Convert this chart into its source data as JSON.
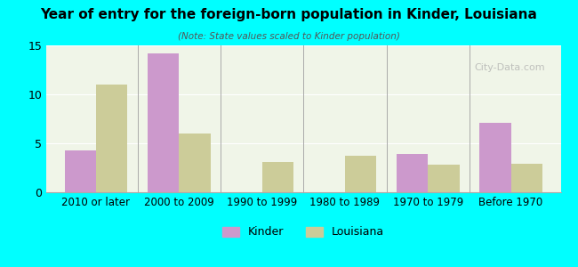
{
  "title": "Year of entry for the foreign-born population in Kinder, Louisiana",
  "subtitle": "(Note: State values scaled to Kinder population)",
  "categories": [
    "2010 or later",
    "2000 to 2009",
    "1990 to 1999",
    "1980 to 1989",
    "1970 to 1979",
    "Before 1970"
  ],
  "kinder_values": [
    4.3,
    14.2,
    0,
    0,
    3.9,
    7.1
  ],
  "louisiana_values": [
    11.0,
    6.0,
    3.1,
    3.7,
    2.8,
    2.9
  ],
  "kinder_color": "#CC99CC",
  "louisiana_color": "#CCCC99",
  "background_color": "#00FFFF",
  "plot_bg_color": "#f0f5e8",
  "ylim": [
    0,
    15
  ],
  "yticks": [
    0,
    5,
    10,
    15
  ],
  "bar_width": 0.38,
  "watermark": "City-Data.com",
  "legend_kinder": "Kinder",
  "legend_louisiana": "Louisiana"
}
